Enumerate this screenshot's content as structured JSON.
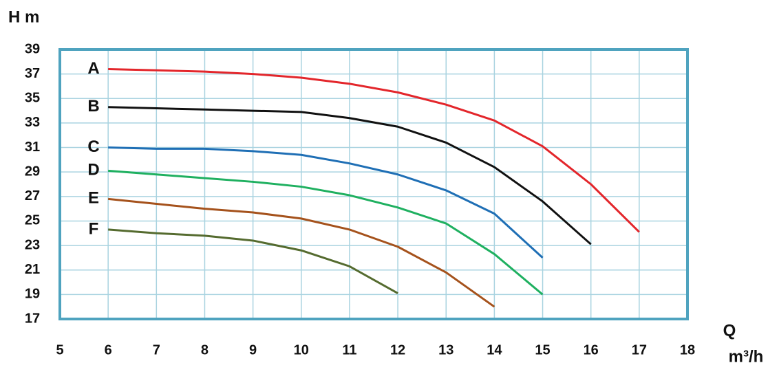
{
  "chart_data": {
    "type": "line",
    "y_label": "H m",
    "x_label": "Q",
    "x_unit": "m³/h",
    "x": [
      6,
      7,
      8,
      9,
      10,
      11,
      12,
      13,
      14,
      15,
      16,
      17
    ],
    "series": [
      {
        "name": "A",
        "color": "#e3262b",
        "values": [
          37.4,
          37.3,
          37.2,
          37.0,
          36.7,
          36.2,
          35.5,
          34.5,
          33.2,
          31.1,
          28.0,
          24.1
        ]
      },
      {
        "name": "B",
        "color": "#111111",
        "values": [
          34.3,
          34.2,
          34.1,
          34.0,
          33.9,
          33.4,
          32.7,
          31.4,
          29.4,
          26.6,
          23.1,
          null
        ]
      },
      {
        "name": "C",
        "color": "#1f6fb5",
        "values": [
          31.0,
          30.9,
          30.9,
          30.7,
          30.4,
          29.7,
          28.8,
          27.5,
          25.6,
          22.0,
          null,
          null
        ]
      },
      {
        "name": "D",
        "color": "#1fb060",
        "values": [
          29.1,
          28.8,
          28.5,
          28.2,
          27.8,
          27.1,
          26.1,
          24.8,
          22.3,
          19.0,
          null,
          null
        ]
      },
      {
        "name": "E",
        "color": "#a5521c",
        "values": [
          26.8,
          26.4,
          26.0,
          25.7,
          25.2,
          24.3,
          22.9,
          20.8,
          18.0,
          null,
          null,
          null
        ]
      },
      {
        "name": "F",
        "color": "#556b2f",
        "values": [
          24.3,
          24.0,
          23.8,
          23.4,
          22.6,
          21.3,
          19.1,
          null,
          null,
          null,
          null,
          null
        ]
      }
    ],
    "xlim": [
      5,
      18
    ],
    "ylim": [
      17,
      39
    ],
    "xticks": [
      5,
      6,
      7,
      8,
      9,
      10,
      11,
      12,
      13,
      14,
      15,
      16,
      17,
      18
    ],
    "yticks": [
      17,
      19,
      21,
      23,
      25,
      27,
      29,
      31,
      33,
      35,
      37,
      39
    ],
    "grid": true
  }
}
